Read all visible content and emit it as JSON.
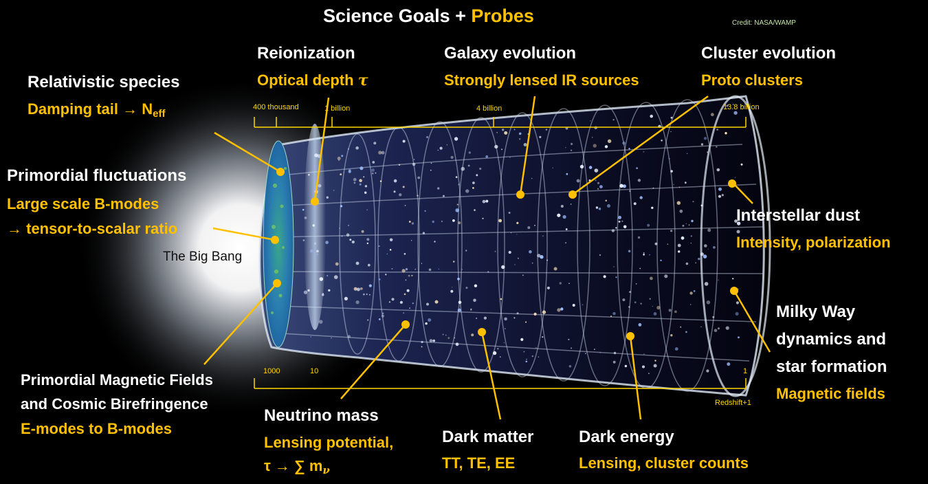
{
  "title": {
    "prefix": "Science Goals + ",
    "highlight": "Probes"
  },
  "credit": "Credit: NASA/WAMP",
  "big_bang_label": "The Big Bang",
  "time_axis": [
    "400 thousand",
    "1 billion",
    "4 billion",
    "13.8 billion"
  ],
  "redshift_axis": {
    "ticks": [
      "1000",
      "10",
      "1"
    ],
    "label": "Redshift+1"
  },
  "annotations": {
    "relativistic": {
      "goal": "Relativistic species",
      "probe_prefix": "Damping tail → N",
      "probe_sub": "eff"
    },
    "primordial": {
      "goal": "Primordial fluctuations",
      "probe1": "Large scale B-modes",
      "probe2": "→ tensor-to-scalar ratio"
    },
    "magnetic": {
      "goal1": "Primordial Magnetic Fields",
      "goal2": "and Cosmic Birefringence",
      "probe": "E-modes to B-modes"
    },
    "reionization": {
      "goal": "Reionization",
      "probe": "Optical depth",
      "probe_symbol": "τ"
    },
    "galaxy": {
      "goal": "Galaxy evolution",
      "probe": "Strongly lensed IR sources"
    },
    "cluster": {
      "goal": "Cluster evolution",
      "probe": "Proto clusters"
    },
    "dust": {
      "goal": "Interstellar dust",
      "probe": "Intensity, polarization"
    },
    "milkyway": {
      "goal1": "Milky Way",
      "goal2": "dynamics and",
      "goal3": "star formation",
      "probe": "Magnetic fields"
    },
    "neutrino": {
      "goal": "Neutrino mass",
      "probe1": "Lensing potential,",
      "probe2": "τ → ∑ m",
      "probe2_sub": "ν"
    },
    "darkmatter": {
      "goal": "Dark matter",
      "probe": "TT, TE, EE"
    },
    "darkenergy": {
      "goal": "Dark energy",
      "probe": "Lensing, cluster counts"
    }
  },
  "colors": {
    "accent": "#ffc000",
    "text": "#ffffff",
    "background": "#000000",
    "axis": "#ffd700"
  }
}
